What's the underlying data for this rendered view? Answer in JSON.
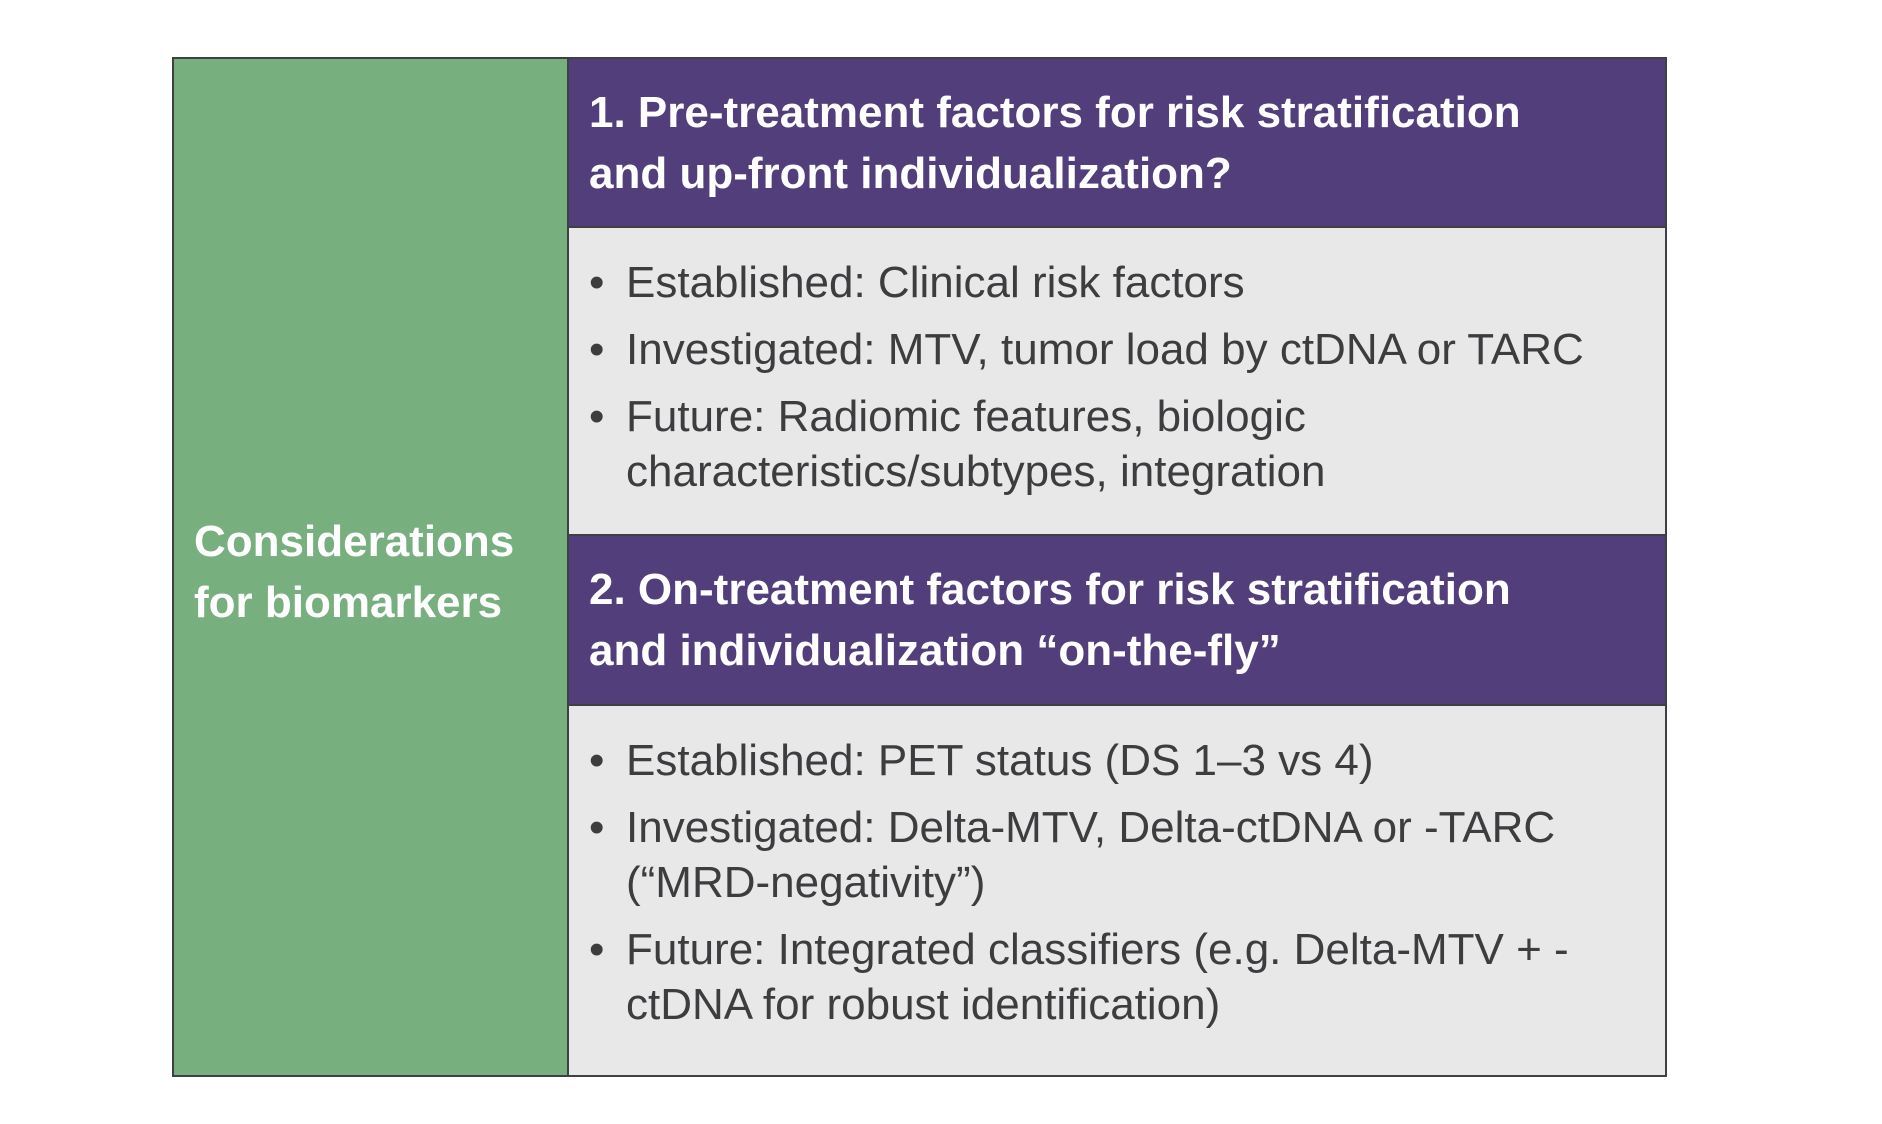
{
  "left_label": {
    "line1": "Considerations",
    "line2": "for biomarkers"
  },
  "section1": {
    "title_line1": "1. Pre-treatment factors for risk stratification",
    "title_line2": "and up-front individualization?",
    "bullets": [
      {
        "lines": [
          "Established: Clinical risk factors"
        ]
      },
      {
        "lines": [
          "Investigated: MTV, tumor load by ctDNA or TARC"
        ]
      },
      {
        "lines": [
          "Future: Radiomic features, biologic",
          "characteristics/subtypes, integration"
        ]
      }
    ]
  },
  "section2": {
    "title_line1": "2. On-treatment factors for risk stratification",
    "title_line2": "and individualization “on-the-fly”",
    "bullets": [
      {
        "lines": [
          "Established: PET status (DS 1–3 vs 4)"
        ]
      },
      {
        "lines": [
          "Investigated: Delta-MTV, Delta-ctDNA or -TARC",
          "(“MRD-negativity”)"
        ]
      },
      {
        "lines": [
          "Future: Integrated classifiers (e.g. Delta-MTV + -",
          "ctDNA for robust identification)"
        ]
      }
    ]
  },
  "bullet_symbol": "•",
  "colors": {
    "left_panel": "#77b07e",
    "header": "#533e7c",
    "body": "#e8e8e8",
    "border": "#3f3f46"
  }
}
